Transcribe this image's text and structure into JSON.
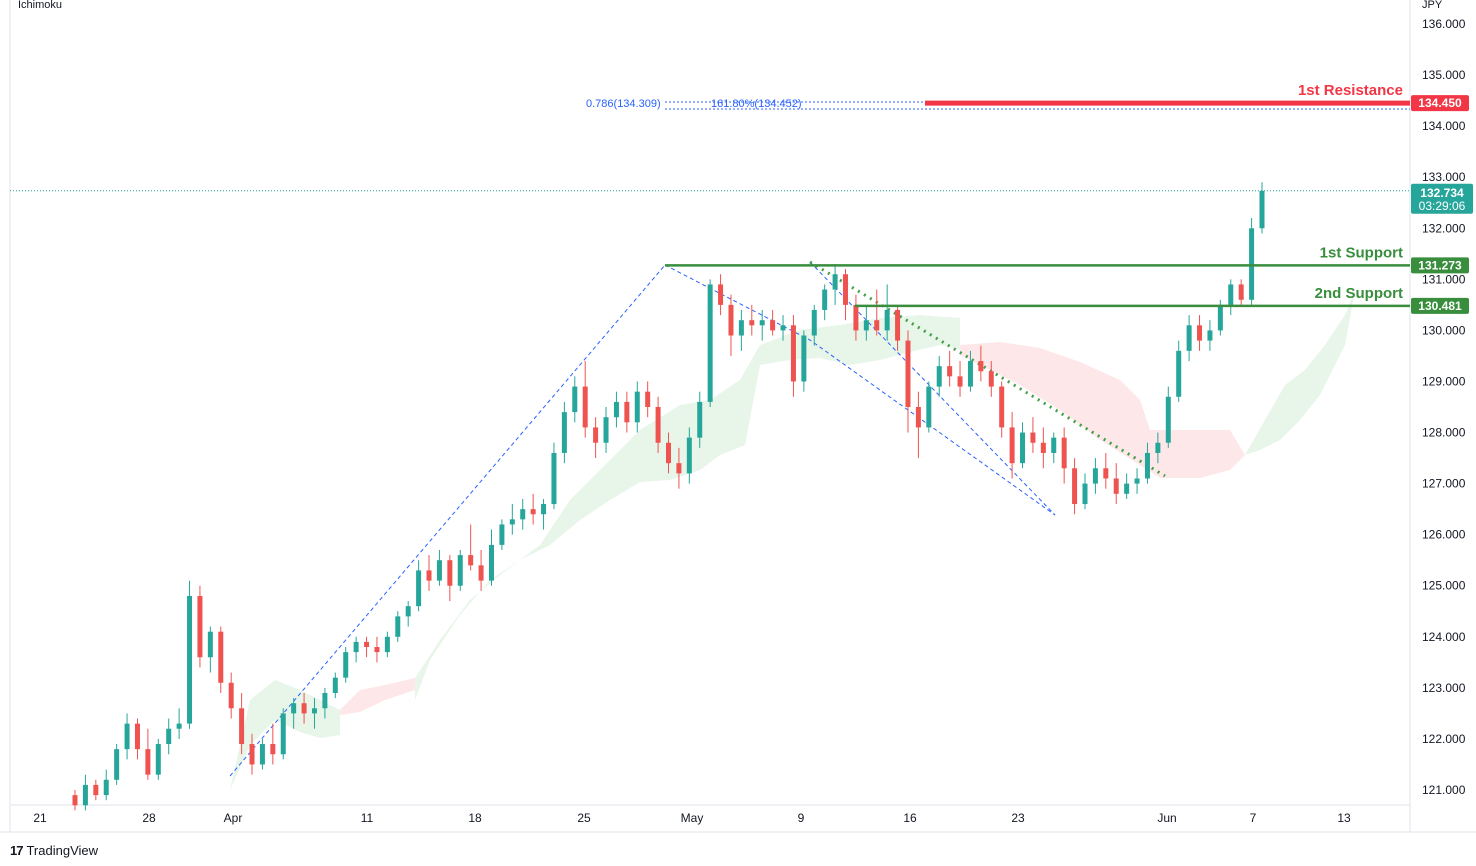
{
  "indicator_label": "Ichimoku",
  "currency_label": "JPY",
  "brand": {
    "logo_text": "17",
    "name": "TradingView"
  },
  "colors": {
    "up": "#26a69a",
    "down": "#ef5350",
    "support": "#388e3c",
    "resistance": "#f23645",
    "fib": "#2962ff",
    "cloud_bull": "#e8f5e9",
    "cloud_bear": "#fde7e9",
    "last_price_tag": "#26a69a"
  },
  "chart_data": {
    "type": "candlestick",
    "ylim": [
      120.8,
      136.2
    ],
    "y_ticks": [
      "136.000",
      "135.000",
      "134.000",
      "133.000",
      "132.000",
      "131.000",
      "130.000",
      "129.000",
      "128.000",
      "127.000",
      "126.000",
      "125.000",
      "124.000",
      "123.000",
      "122.000",
      "121.000"
    ],
    "x_ticks": [
      "21",
      "28",
      "Apr",
      "11",
      "18",
      "25",
      "May",
      "9",
      "16",
      "23",
      "Jun",
      "7",
      "13"
    ],
    "last_price": {
      "value": "132.734",
      "countdown": "03:29:06",
      "y": 132.734
    },
    "levels": [
      {
        "name": "1st Resistance",
        "value": "134.450",
        "y": 134.45,
        "kind": "resistance"
      },
      {
        "name": "1st Support",
        "value": "131.273",
        "y": 131.273,
        "kind": "support"
      },
      {
        "name": "2nd Support",
        "value": "130.481",
        "y": 130.481,
        "kind": "support"
      }
    ],
    "fib_labels": [
      {
        "text": "0.786(134.309)",
        "y": 134.309
      },
      {
        "text": "161.80%(134.452)",
        "y": 134.452
      }
    ],
    "candles": [
      [
        120.9,
        121.0,
        120.6,
        120.7
      ],
      [
        120.7,
        121.3,
        120.6,
        121.1
      ],
      [
        121.1,
        121.2,
        120.8,
        120.9
      ],
      [
        120.9,
        121.4,
        120.8,
        121.2
      ],
      [
        121.2,
        121.9,
        121.1,
        121.8
      ],
      [
        121.8,
        122.5,
        121.6,
        122.3
      ],
      [
        122.3,
        122.4,
        121.6,
        121.8
      ],
      [
        121.8,
        122.2,
        121.2,
        121.3
      ],
      [
        121.3,
        122.0,
        121.2,
        121.9
      ],
      [
        121.9,
        122.4,
        121.7,
        122.2
      ],
      [
        122.2,
        122.6,
        122.0,
        122.3
      ],
      [
        122.3,
        125.1,
        122.2,
        124.8
      ],
      [
        124.8,
        125.0,
        123.4,
        123.6
      ],
      [
        123.6,
        124.2,
        123.3,
        124.1
      ],
      [
        124.1,
        124.2,
        122.9,
        123.1
      ],
      [
        123.1,
        123.3,
        122.4,
        122.6
      ],
      [
        122.6,
        122.9,
        121.7,
        121.9
      ],
      [
        121.9,
        122.1,
        121.3,
        121.5
      ],
      [
        121.5,
        122.0,
        121.4,
        121.9
      ],
      [
        121.9,
        122.3,
        121.5,
        121.7
      ],
      [
        121.7,
        122.6,
        121.6,
        122.5
      ],
      [
        122.5,
        122.8,
        122.2,
        122.7
      ],
      [
        122.7,
        122.9,
        122.3,
        122.5
      ],
      [
        122.5,
        122.8,
        122.2,
        122.6
      ],
      [
        122.6,
        123.0,
        122.4,
        122.9
      ],
      [
        122.9,
        123.3,
        122.8,
        123.2
      ],
      [
        123.2,
        123.8,
        123.1,
        123.7
      ],
      [
        123.7,
        124.0,
        123.5,
        123.9
      ],
      [
        123.9,
        124.0,
        123.6,
        123.8
      ],
      [
        123.8,
        124.0,
        123.5,
        123.7
      ],
      [
        123.7,
        124.1,
        123.6,
        124.0
      ],
      [
        124.0,
        124.5,
        123.9,
        124.4
      ],
      [
        124.4,
        124.7,
        124.2,
        124.6
      ],
      [
        124.6,
        125.5,
        124.5,
        125.3
      ],
      [
        125.3,
        125.6,
        124.9,
        125.1
      ],
      [
        125.1,
        125.7,
        125.0,
        125.5
      ],
      [
        125.5,
        125.6,
        124.7,
        125.0
      ],
      [
        125.0,
        125.7,
        124.9,
        125.6
      ],
      [
        125.6,
        126.2,
        125.3,
        125.4
      ],
      [
        125.4,
        125.7,
        124.9,
        125.1
      ],
      [
        125.1,
        126.1,
        125.0,
        125.8
      ],
      [
        125.8,
        126.3,
        125.7,
        126.2
      ],
      [
        126.2,
        126.6,
        126.0,
        126.3
      ],
      [
        126.3,
        126.7,
        126.1,
        126.5
      ],
      [
        126.5,
        126.8,
        126.2,
        126.4
      ],
      [
        126.4,
        126.7,
        126.1,
        126.6
      ],
      [
        126.6,
        127.8,
        126.5,
        127.6
      ],
      [
        127.6,
        128.6,
        127.4,
        128.4
      ],
      [
        128.4,
        129.1,
        128.2,
        128.9
      ],
      [
        128.9,
        129.4,
        127.9,
        128.1
      ],
      [
        128.1,
        128.3,
        127.5,
        127.8
      ],
      [
        127.8,
        128.5,
        127.6,
        128.3
      ],
      [
        128.3,
        128.8,
        128.1,
        128.6
      ],
      [
        128.6,
        128.8,
        128.0,
        128.2
      ],
      [
        128.2,
        129.0,
        128.0,
        128.8
      ],
      [
        128.8,
        129.0,
        128.3,
        128.5
      ],
      [
        128.5,
        128.7,
        127.6,
        127.8
      ],
      [
        127.8,
        128.0,
        127.2,
        127.4
      ],
      [
        127.4,
        127.7,
        126.9,
        127.2
      ],
      [
        127.2,
        128.1,
        127.0,
        127.9
      ],
      [
        127.9,
        128.8,
        127.7,
        128.6
      ],
      [
        128.6,
        131.0,
        128.5,
        130.9
      ],
      [
        130.9,
        131.1,
        130.3,
        130.5
      ],
      [
        130.5,
        130.7,
        129.5,
        129.9
      ],
      [
        129.9,
        130.4,
        129.6,
        130.2
      ],
      [
        130.2,
        130.5,
        129.9,
        130.1
      ],
      [
        130.1,
        130.4,
        129.8,
        130.2
      ],
      [
        130.2,
        130.4,
        129.9,
        130.0
      ],
      [
        130.0,
        130.3,
        129.8,
        130.1
      ],
      [
        130.1,
        130.3,
        128.7,
        129.0
      ],
      [
        129.0,
        130.0,
        128.8,
        129.9
      ],
      [
        129.9,
        130.5,
        129.7,
        130.4
      ],
      [
        130.4,
        130.9,
        130.2,
        130.8
      ],
      [
        130.8,
        131.3,
        130.5,
        131.1
      ],
      [
        131.1,
        131.2,
        130.2,
        130.5
      ],
      [
        130.5,
        130.7,
        129.8,
        130.0
      ],
      [
        130.0,
        130.5,
        129.8,
        130.2
      ],
      [
        130.2,
        130.8,
        129.9,
        130.0
      ],
      [
        130.0,
        130.9,
        129.8,
        130.4
      ],
      [
        130.4,
        130.5,
        129.6,
        129.8
      ],
      [
        129.8,
        130.0,
        128.0,
        128.5
      ],
      [
        128.5,
        128.8,
        127.5,
        128.1
      ],
      [
        128.1,
        129.0,
        128.0,
        128.9
      ],
      [
        128.9,
        129.5,
        128.7,
        129.3
      ],
      [
        129.3,
        129.6,
        128.9,
        129.1
      ],
      [
        129.1,
        129.4,
        128.7,
        128.9
      ],
      [
        128.9,
        129.6,
        128.8,
        129.4
      ],
      [
        129.4,
        129.7,
        129.0,
        129.2
      ],
      [
        129.2,
        129.4,
        128.7,
        128.9
      ],
      [
        128.9,
        129.0,
        127.9,
        128.1
      ],
      [
        128.1,
        128.4,
        127.1,
        127.4
      ],
      [
        127.4,
        128.2,
        127.3,
        128.0
      ],
      [
        128.0,
        128.3,
        127.6,
        127.8
      ],
      [
        127.8,
        128.1,
        127.3,
        127.6
      ],
      [
        127.6,
        128.0,
        127.4,
        127.9
      ],
      [
        127.9,
        128.1,
        127.0,
        127.3
      ],
      [
        127.3,
        127.5,
        126.4,
        126.6
      ],
      [
        126.6,
        127.2,
        126.5,
        127.0
      ],
      [
        127.0,
        127.5,
        126.8,
        127.3
      ],
      [
        127.3,
        127.6,
        126.9,
        127.1
      ],
      [
        127.1,
        127.4,
        126.6,
        126.8
      ],
      [
        126.8,
        127.2,
        126.7,
        127.0
      ],
      [
        127.0,
        127.3,
        126.8,
        127.1
      ],
      [
        127.1,
        127.8,
        127.0,
        127.6
      ],
      [
        127.6,
        128.0,
        127.4,
        127.8
      ],
      [
        127.8,
        128.9,
        127.7,
        128.7
      ],
      [
        128.7,
        129.8,
        128.6,
        129.6
      ],
      [
        129.6,
        130.3,
        129.4,
        130.1
      ],
      [
        130.1,
        130.3,
        129.6,
        129.8
      ],
      [
        129.8,
        130.2,
        129.6,
        130.0
      ],
      [
        130.0,
        130.6,
        129.9,
        130.5
      ],
      [
        130.5,
        131.0,
        130.3,
        130.9
      ],
      [
        130.9,
        131.0,
        130.5,
        130.6
      ],
      [
        130.6,
        132.2,
        130.5,
        132.0
      ],
      [
        132.0,
        132.9,
        131.9,
        132.734
      ]
    ]
  }
}
